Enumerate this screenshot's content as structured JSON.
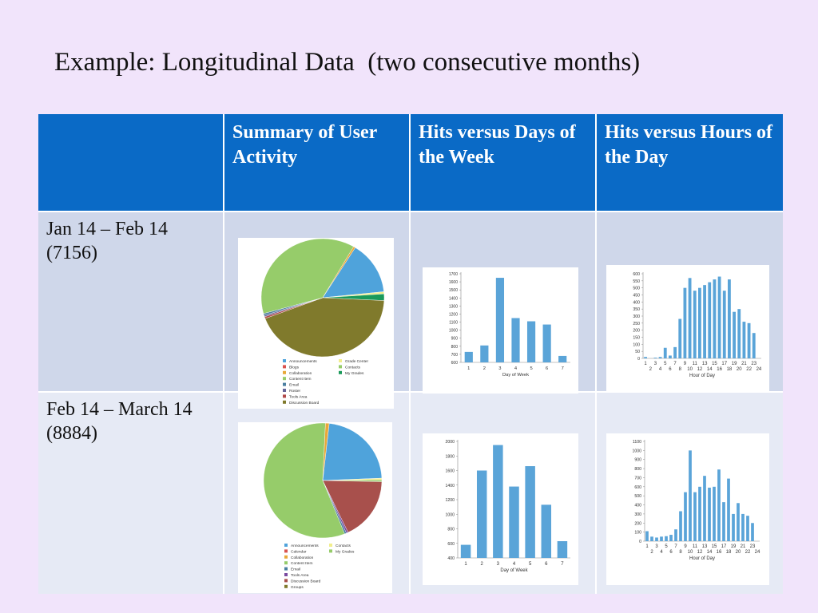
{
  "title": "Example: Longitudinal Data  (two consecutive months)",
  "table": {
    "headers": [
      "",
      "Summary of User Activity",
      "Hits versus Days of the Week",
      "Hits versus Hours of the Day"
    ],
    "rows": [
      {
        "period": "Jan 14 – Feb 14",
        "total": "(7156)"
      },
      {
        "period": "Feb 14 – March 14",
        "total": "(8884)"
      }
    ]
  },
  "colors": {
    "bar": "#5aa4d8",
    "header": "#0a6ac6"
  },
  "chart_data": [
    {
      "type": "pie",
      "slices": [
        {
          "name": "Announcements",
          "value": 14.5,
          "color": "#4fa3db"
        },
        {
          "name": "Grade Center",
          "value": 0.6,
          "color": "#f2ee8c"
        },
        {
          "name": "My Grades",
          "value": 1.8,
          "color": "#1a9a5a"
        },
        {
          "name": "Discussion Board",
          "value": 43.5,
          "color": "#807a2c"
        },
        {
          "name": "Tools Area",
          "value": 0.5,
          "color": "#b04a4a"
        },
        {
          "name": "Roster",
          "value": 0.4,
          "color": "#666699"
        },
        {
          "name": "Email",
          "value": 0.5,
          "color": "#4a7fa0"
        },
        {
          "name": "Content Item",
          "value": 37.7,
          "color": "#96cc6a"
        },
        {
          "name": "Collaboration",
          "value": 0.5,
          "color": "#e8a83a"
        }
      ],
      "legend": [
        {
          "name": "Announcements",
          "color": "#4fa3db"
        },
        {
          "name": "Grade Center",
          "color": "#f2ee8c"
        },
        {
          "name": "Blogs",
          "color": "#d9534f"
        },
        {
          "name": "Contacts",
          "color": "#96cc6a"
        },
        {
          "name": "Collaboration",
          "color": "#e8a83a"
        },
        {
          "name": "My Grades",
          "color": "#1a9a5a"
        },
        {
          "name": "Content Item",
          "color": "#96cc6a"
        },
        {
          "name": "Email",
          "color": "#4a7fa0"
        },
        {
          "name": "Roster",
          "color": "#666699"
        },
        {
          "name": "Tools Area",
          "color": "#b04a4a"
        },
        {
          "name": "Discussion Board",
          "color": "#807a2c"
        }
      ]
    },
    {
      "type": "bar",
      "categories": [
        "1",
        "2",
        "3",
        "4",
        "5",
        "6",
        "7"
      ],
      "values": [
        730,
        810,
        1650,
        1150,
        1110,
        1070,
        680
      ],
      "xlabel": "Day of Week",
      "ylim": [
        600,
        1700
      ],
      "yticks": [
        600,
        700,
        800,
        900,
        1000,
        1100,
        1200,
        1300,
        1400,
        1500,
        1600,
        1700
      ]
    },
    {
      "type": "bar",
      "categories": [
        "1",
        "2",
        "3",
        "4",
        "5",
        "6",
        "7",
        "8",
        "9",
        "10",
        "11",
        "12",
        "13",
        "14",
        "15",
        "16",
        "17",
        "18",
        "19",
        "20",
        "21",
        "22",
        "23",
        "24"
      ],
      "values": [
        10,
        0,
        5,
        10,
        75,
        20,
        80,
        280,
        500,
        570,
        480,
        500,
        520,
        540,
        560,
        580,
        480,
        560,
        330,
        350,
        260,
        250,
        180,
        0
      ],
      "xlabel": "Hour of Day",
      "ylim": [
        0,
        600
      ],
      "yticks": [
        0,
        50,
        100,
        150,
        200,
        250,
        300,
        350,
        400,
        450,
        500,
        550,
        600
      ],
      "xticks_top": [
        "1",
        "3",
        "5",
        "7",
        "9",
        "11",
        "13",
        "15",
        "17",
        "19",
        "21",
        "23"
      ],
      "xticks_bottom": [
        "2",
        "4",
        "6",
        "8",
        "10",
        "12",
        "14",
        "16",
        "18",
        "20",
        "22",
        "24"
      ]
    },
    {
      "type": "pie",
      "slices": [
        {
          "name": "Announcements",
          "value": 22.5,
          "color": "#4fa3db"
        },
        {
          "name": "Contacts",
          "value": 0.5,
          "color": "#f2ee8c"
        },
        {
          "name": "My Grades",
          "value": 0.5,
          "color": "#96cc6a"
        },
        {
          "name": "Discussion Board",
          "value": 17.5,
          "color": "#a8504c"
        },
        {
          "name": "Tools Area",
          "value": 0.5,
          "color": "#7a4aa0"
        },
        {
          "name": "Email",
          "value": 0.5,
          "color": "#4a7fa0"
        },
        {
          "name": "Content Item",
          "value": 56.5,
          "color": "#96cc6a"
        },
        {
          "name": "Collaboration",
          "value": 1.0,
          "color": "#e8a83a"
        }
      ],
      "legend": [
        {
          "name": "Announcements",
          "color": "#4fa3db"
        },
        {
          "name": "Contacts",
          "color": "#f2ee8c"
        },
        {
          "name": "Calendar",
          "color": "#d9534f"
        },
        {
          "name": "My Grades",
          "color": "#96cc6a"
        },
        {
          "name": "Collaboration",
          "color": "#e8a83a"
        },
        {
          "name": "Content Item",
          "color": "#96cc6a"
        },
        {
          "name": "Email",
          "color": "#4a7fa0"
        },
        {
          "name": "Tools Area",
          "color": "#7a4aa0"
        },
        {
          "name": "Discussion Board",
          "color": "#a8504c"
        },
        {
          "name": "Groups",
          "color": "#807a2c"
        }
      ]
    },
    {
      "type": "bar",
      "categories": [
        "1",
        "2",
        "3",
        "4",
        "5",
        "6",
        "7"
      ],
      "values": [
        580,
        1600,
        1950,
        1380,
        1660,
        1130,
        630
      ],
      "xlabel": "Day of Week",
      "ylim": [
        400,
        2000
      ],
      "yticks": [
        400,
        600,
        800,
        1000,
        1200,
        1400,
        1600,
        1800,
        2000
      ]
    },
    {
      "type": "bar",
      "categories": [
        "1",
        "2",
        "3",
        "4",
        "5",
        "6",
        "7",
        "8",
        "9",
        "10",
        "11",
        "12",
        "13",
        "14",
        "15",
        "16",
        "17",
        "18",
        "19",
        "20",
        "21",
        "22",
        "23",
        "24"
      ],
      "values": [
        110,
        50,
        40,
        50,
        55,
        70,
        130,
        330,
        540,
        1000,
        540,
        600,
        720,
        590,
        600,
        790,
        430,
        690,
        300,
        420,
        300,
        280,
        200,
        0
      ],
      "xlabel": "Hour of Day",
      "ylim": [
        0,
        1100
      ],
      "yticks": [
        0,
        100,
        200,
        300,
        400,
        500,
        600,
        700,
        800,
        900,
        1000,
        1100
      ],
      "xticks_top": [
        "1",
        "3",
        "5",
        "7",
        "9",
        "11",
        "13",
        "15",
        "17",
        "19",
        "21",
        "23"
      ],
      "xticks_bottom": [
        "2",
        "4",
        "6",
        "8",
        "10",
        "12",
        "14",
        "16",
        "18",
        "20",
        "22",
        "24"
      ]
    }
  ]
}
